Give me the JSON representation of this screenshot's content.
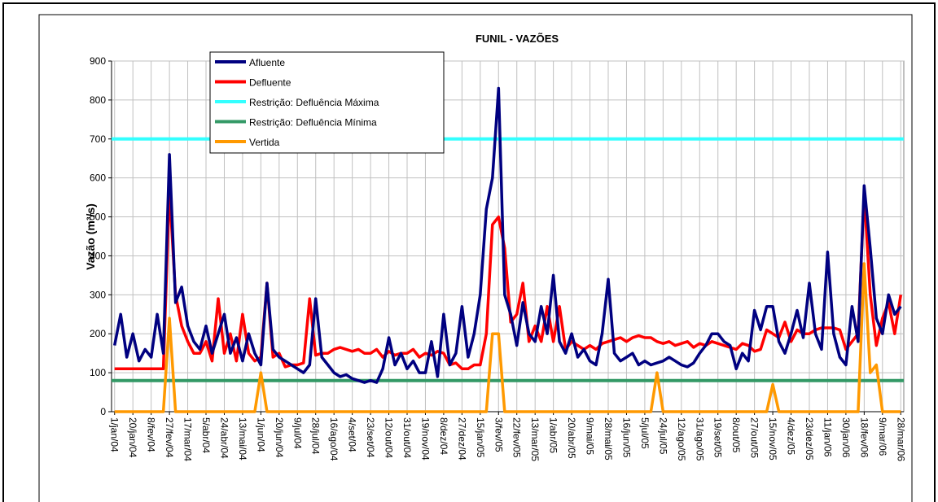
{
  "chart_data": {
    "type": "line",
    "title": "FUNIL - VAZÕES",
    "y_label": "Vazão (m³/s)",
    "ylim": [
      0,
      900
    ],
    "yticks": [
      0,
      100,
      200,
      300,
      400,
      500,
      600,
      700,
      800,
      900
    ],
    "grid": true,
    "legend": "top-left",
    "categories": [
      "1/jan/04",
      null,
      null,
      "20/jan/04",
      null,
      null,
      "8/fev/04",
      null,
      null,
      "27/fev/04",
      null,
      null,
      "17/mar/04",
      null,
      null,
      "5/abr/04",
      null,
      null,
      "24/abr/04",
      null,
      null,
      "13/mai/04",
      null,
      null,
      "1/jun/04",
      null,
      null,
      "20/jun/04",
      null,
      null,
      "9/jul/04",
      null,
      null,
      "28/jul/04",
      null,
      null,
      "16/ago/04",
      null,
      null,
      "4/set/04",
      null,
      null,
      "23/set/04",
      null,
      null,
      "12/out/04",
      null,
      null,
      "31/out/04",
      null,
      null,
      "19/nov/04",
      null,
      null,
      "8/dez/04",
      null,
      null,
      "27/dez/04",
      null,
      null,
      "15/jan/05",
      null,
      null,
      "3/fev/05",
      null,
      null,
      "22/fev/05",
      null,
      null,
      "13/mar/05",
      null,
      null,
      "1/abr/05",
      null,
      null,
      "20/abr/05",
      null,
      null,
      "9/mai/05",
      null,
      null,
      "28/mai/05",
      null,
      null,
      "16/jun/05",
      null,
      null,
      "5/jul/05",
      null,
      null,
      "24/jul/05",
      null,
      null,
      "12/ago/05",
      null,
      null,
      "31/ago/05",
      null,
      null,
      "19/set/05",
      null,
      null,
      "8/out/05",
      null,
      null,
      "27/out/05",
      null,
      null,
      "15/nov/05",
      null,
      null,
      "4/dez/05",
      null,
      null,
      "23/dez/05",
      null,
      null,
      "11/jan/06",
      null,
      null,
      "30/jan/06",
      null,
      null,
      "18/fev/06",
      null,
      null,
      "9/mar/06",
      null,
      null,
      "28/mar/06"
    ],
    "series": [
      {
        "name": "Afluente",
        "color": "#000080",
        "values": [
          170,
          250,
          140,
          200,
          130,
          160,
          140,
          250,
          150,
          660,
          280,
          320,
          220,
          180,
          160,
          220,
          150,
          200,
          250,
          150,
          190,
          130,
          200,
          150,
          120,
          330,
          160,
          140,
          130,
          120,
          110,
          100,
          120,
          290,
          140,
          120,
          100,
          90,
          95,
          85,
          80,
          75,
          80,
          75,
          110,
          190,
          120,
          150,
          110,
          130,
          100,
          100,
          180,
          90,
          250,
          120,
          150,
          270,
          140,
          200,
          300,
          520,
          600,
          830,
          300,
          250,
          170,
          280,
          200,
          180,
          270,
          200,
          350,
          180,
          150,
          200,
          140,
          160,
          130,
          120,
          200,
          340,
          150,
          130,
          140,
          150,
          120,
          130,
          120,
          125,
          130,
          140,
          130,
          120,
          115,
          125,
          150,
          170,
          200,
          200,
          180,
          170,
          110,
          150,
          130,
          260,
          210,
          270,
          270,
          180,
          150,
          200,
          260,
          190,
          330,
          200,
          160,
          410,
          200,
          140,
          120,
          270,
          180,
          580,
          420,
          240,
          200,
          300,
          250,
          270
        ]
      },
      {
        "name": "Defluente",
        "color": "#ff0000",
        "values": [
          110,
          110,
          110,
          110,
          110,
          110,
          110,
          110,
          110,
          570,
          300,
          220,
          180,
          150,
          150,
          180,
          130,
          290,
          150,
          200,
          130,
          250,
          150,
          130,
          140,
          330,
          140,
          150,
          115,
          120,
          120,
          125,
          290,
          145,
          150,
          150,
          160,
          165,
          160,
          155,
          160,
          150,
          150,
          160,
          140,
          155,
          145,
          150,
          150,
          160,
          140,
          150,
          145,
          155,
          150,
          120,
          125,
          110,
          110,
          120,
          120,
          200,
          480,
          500,
          420,
          230,
          250,
          330,
          180,
          220,
          180,
          270,
          180,
          270,
          160,
          180,
          170,
          160,
          170,
          160,
          175,
          180,
          185,
          190,
          180,
          190,
          195,
          190,
          190,
          180,
          175,
          180,
          170,
          175,
          180,
          165,
          175,
          170,
          180,
          175,
          170,
          165,
          160,
          175,
          170,
          155,
          160,
          210,
          200,
          190,
          230,
          180,
          210,
          200,
          200,
          210,
          215,
          215,
          215,
          210,
          160,
          180,
          200,
          560,
          300,
          170,
          240,
          280,
          200,
          300
        ]
      },
      {
        "name": "Restrição: Defluência Máxima",
        "color": "#33ffff",
        "value": 700
      },
      {
        "name": "Restrição: Defluência Mínima",
        "color": "#339966",
        "value": 80
      },
      {
        "name": "Vertida",
        "color": "#ff9900",
        "values": [
          0,
          0,
          0,
          0,
          0,
          0,
          0,
          0,
          0,
          240,
          0,
          0,
          0,
          0,
          0,
          0,
          0,
          0,
          0,
          0,
          0,
          0,
          0,
          0,
          100,
          0,
          0,
          0,
          0,
          0,
          0,
          0,
          0,
          0,
          0,
          0,
          0,
          0,
          0,
          0,
          0,
          0,
          0,
          0,
          0,
          0,
          0,
          0,
          0,
          0,
          0,
          0,
          0,
          0,
          0,
          0,
          0,
          0,
          0,
          0,
          0,
          0,
          200,
          200,
          0,
          0,
          0,
          0,
          0,
          0,
          0,
          0,
          0,
          0,
          0,
          0,
          0,
          0,
          0,
          0,
          0,
          0,
          0,
          0,
          0,
          0,
          0,
          0,
          0,
          100,
          0,
          0,
          0,
          0,
          0,
          0,
          0,
          0,
          0,
          0,
          0,
          0,
          0,
          0,
          0,
          0,
          0,
          0,
          70,
          0,
          0,
          0,
          0,
          0,
          0,
          0,
          0,
          0,
          0,
          0,
          0,
          0,
          0,
          380,
          100,
          120,
          0,
          0,
          0,
          0
        ]
      }
    ]
  }
}
